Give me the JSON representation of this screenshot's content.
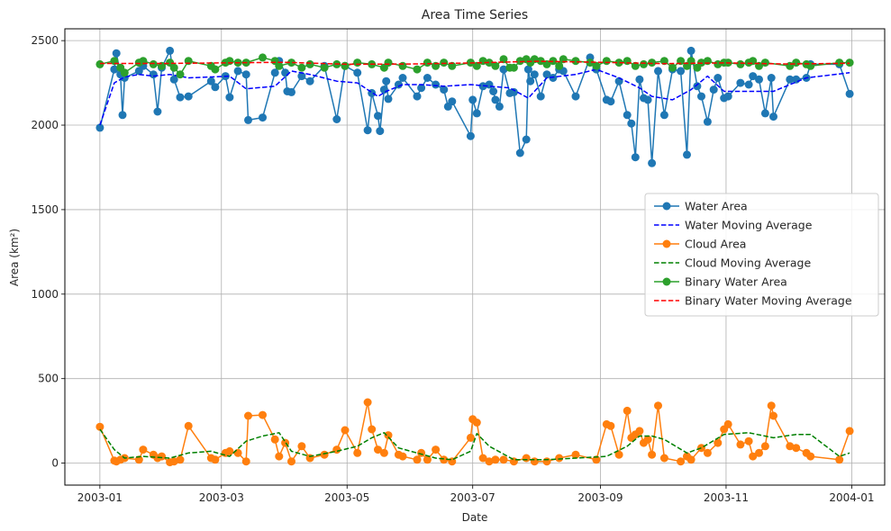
{
  "chart_data": {
    "type": "line",
    "title": "Area Time Series",
    "xlabel": "Date",
    "ylabel": "Area (km²)",
    "xlim": [
      "2002-12-15",
      "2004-01-17"
    ],
    "ylim": [
      -130,
      2570
    ],
    "grid": true,
    "legend_position": "center-right",
    "xticks": [
      {
        "date": "2003-01-01",
        "label": "2003-01"
      },
      {
        "date": "2003-03-01",
        "label": "2003-03"
      },
      {
        "date": "2003-05-01",
        "label": "2003-05"
      },
      {
        "date": "2003-07-01",
        "label": "2003-07"
      },
      {
        "date": "2003-09-01",
        "label": "2003-09"
      },
      {
        "date": "2003-11-01",
        "label": "2003-11"
      },
      {
        "date": "2004-01-01",
        "label": "2004-01"
      }
    ],
    "yticks": [
      0,
      500,
      1000,
      1500,
      2000,
      2500
    ],
    "series": [
      {
        "name": "Water Area",
        "style": "line-marker",
        "color": "#1f77b4",
        "x": [
          "2003-01-01",
          "2003-01-08",
          "2003-01-09",
          "2003-01-11",
          "2003-01-12",
          "2003-01-13",
          "2003-01-20",
          "2003-01-22",
          "2003-01-27",
          "2003-01-29",
          "2003-01-31",
          "2003-02-04",
          "2003-02-06",
          "2003-02-09",
          "2003-02-13",
          "2003-02-24",
          "2003-02-26",
          "2003-03-03",
          "2003-03-05",
          "2003-03-09",
          "2003-03-13",
          "2003-03-14",
          "2003-03-21",
          "2003-03-27",
          "2003-03-29",
          "2003-04-01",
          "2003-04-02",
          "2003-04-04",
          "2003-04-09",
          "2003-04-13",
          "2003-04-20",
          "2003-04-26",
          "2003-04-30",
          "2003-05-06",
          "2003-05-11",
          "2003-05-13",
          "2003-05-16",
          "2003-05-17",
          "2003-05-19",
          "2003-05-20",
          "2003-05-21",
          "2003-05-26",
          "2003-05-28",
          "2003-06-04",
          "2003-06-06",
          "2003-06-09",
          "2003-06-13",
          "2003-06-17",
          "2003-06-19",
          "2003-06-21",
          "2003-06-30",
          "2003-07-01",
          "2003-07-03",
          "2003-07-06",
          "2003-07-09",
          "2003-07-11",
          "2003-07-12",
          "2003-07-14",
          "2003-07-16",
          "2003-07-19",
          "2003-07-21",
          "2003-07-24",
          "2003-07-27",
          "2003-07-28",
          "2003-07-29",
          "2003-07-31",
          "2003-08-03",
          "2003-08-06",
          "2003-08-09",
          "2003-08-12",
          "2003-08-14",
          "2003-08-20",
          "2003-08-27",
          "2003-08-30",
          "2003-09-04",
          "2003-09-06",
          "2003-09-10",
          "2003-09-14",
          "2003-09-16",
          "2003-09-18",
          "2003-09-20",
          "2003-09-22",
          "2003-09-24",
          "2003-09-26",
          "2003-09-29",
          "2003-10-02",
          "2003-10-06",
          "2003-10-10",
          "2003-10-13",
          "2003-10-15",
          "2003-10-18",
          "2003-10-20",
          "2003-10-23",
          "2003-10-26",
          "2003-10-28",
          "2003-10-31",
          "2003-11-02",
          "2003-11-08",
          "2003-11-12",
          "2003-11-14",
          "2003-11-17",
          "2003-11-20",
          "2003-11-23",
          "2003-11-24",
          "2003-12-02",
          "2003-12-05",
          "2003-12-10",
          "2003-12-12",
          "2003-12-26",
          "2003-12-31"
        ],
        "y": [
          1985,
          2330,
          2425,
          2300,
          2060,
          2280,
          2320,
          2350,
          2300,
          2080,
          2340,
          2440,
          2270,
          2165,
          2170,
          2260,
          2225,
          2290,
          2165,
          2320,
          2300,
          2030,
          2045,
          2310,
          2380,
          2310,
          2200,
          2195,
          2290,
          2260,
          2350,
          2035,
          2350,
          2310,
          1970,
          2190,
          2055,
          1965,
          2210,
          2260,
          2155,
          2240,
          2280,
          2170,
          2220,
          2280,
          2240,
          2210,
          2110,
          2140,
          1935,
          2150,
          2070,
          2230,
          2240,
          2200,
          2150,
          2110,
          2330,
          2190,
          2195,
          1835,
          1915,
          2330,
          2260,
          2300,
          2170,
          2300,
          2280,
          2330,
          2320,
          2170,
          2400,
          2330,
          2150,
          2140,
          2260,
          2060,
          2010,
          1810,
          2270,
          2160,
          2150,
          1775,
          2320,
          2060,
          2330,
          2320,
          1825,
          2440,
          2230,
          2170,
          2020,
          2210,
          2280,
          2160,
          2170,
          2250,
          2240,
          2290,
          2270,
          2070,
          2280,
          2050,
          2270,
          2270,
          2280,
          2360,
          2360,
          2185
        ]
      },
      {
        "name": "Water Moving Average",
        "style": "dashed",
        "color": "#0000ff",
        "x": [
          "2003-01-01",
          "2003-01-08",
          "2003-01-13",
          "2003-01-20",
          "2003-01-27",
          "2003-02-04",
          "2003-02-13",
          "2003-02-24",
          "2003-03-05",
          "2003-03-13",
          "2003-03-27",
          "2003-04-04",
          "2003-04-13",
          "2003-04-26",
          "2003-05-06",
          "2003-05-16",
          "2003-05-20",
          "2003-05-28",
          "2003-06-06",
          "2003-06-17",
          "2003-06-30",
          "2003-07-09",
          "2003-07-19",
          "2003-07-28",
          "2003-08-06",
          "2003-08-20",
          "2003-08-30",
          "2003-09-10",
          "2003-09-20",
          "2003-09-26",
          "2003-10-06",
          "2003-10-15",
          "2003-10-23",
          "2003-10-31",
          "2003-11-12",
          "2003-11-24",
          "2003-12-10",
          "2003-12-31"
        ],
        "y": [
          2000,
          2250,
          2285,
          2300,
          2290,
          2300,
          2280,
          2285,
          2290,
          2215,
          2230,
          2320,
          2300,
          2260,
          2250,
          2170,
          2200,
          2240,
          2240,
          2230,
          2240,
          2230,
          2220,
          2160,
          2280,
          2300,
          2330,
          2280,
          2220,
          2170,
          2150,
          2210,
          2290,
          2200,
          2200,
          2200,
          2280,
          2310
        ]
      },
      {
        "name": "Cloud Area",
        "style": "line-marker",
        "color": "#ff7f0e",
        "x": [
          "2003-01-01",
          "2003-01-08",
          "2003-01-09",
          "2003-01-11",
          "2003-01-13",
          "2003-01-20",
          "2003-01-22",
          "2003-01-27",
          "2003-01-29",
          "2003-01-31",
          "2003-02-04",
          "2003-02-06",
          "2003-02-09",
          "2003-02-13",
          "2003-02-24",
          "2003-02-26",
          "2003-03-03",
          "2003-03-05",
          "2003-03-09",
          "2003-03-13",
          "2003-03-14",
          "2003-03-21",
          "2003-03-27",
          "2003-03-29",
          "2003-04-01",
          "2003-04-04",
          "2003-04-09",
          "2003-04-13",
          "2003-04-20",
          "2003-04-26",
          "2003-04-30",
          "2003-05-06",
          "2003-05-11",
          "2003-05-13",
          "2003-05-16",
          "2003-05-19",
          "2003-05-21",
          "2003-05-26",
          "2003-05-28",
          "2003-06-04",
          "2003-06-06",
          "2003-06-09",
          "2003-06-13",
          "2003-06-17",
          "2003-06-21",
          "2003-06-30",
          "2003-07-01",
          "2003-07-03",
          "2003-07-06",
          "2003-07-09",
          "2003-07-12",
          "2003-07-16",
          "2003-07-21",
          "2003-07-27",
          "2003-07-31",
          "2003-08-06",
          "2003-08-12",
          "2003-08-20",
          "2003-08-30",
          "2003-09-04",
          "2003-09-06",
          "2003-09-10",
          "2003-09-14",
          "2003-09-16",
          "2003-09-18",
          "2003-09-20",
          "2003-09-22",
          "2003-09-24",
          "2003-09-26",
          "2003-09-29",
          "2003-10-02",
          "2003-10-10",
          "2003-10-13",
          "2003-10-15",
          "2003-10-20",
          "2003-10-23",
          "2003-10-28",
          "2003-10-31",
          "2003-11-02",
          "2003-11-08",
          "2003-11-12",
          "2003-11-14",
          "2003-11-17",
          "2003-11-20",
          "2003-11-23",
          "2003-11-24",
          "2003-12-02",
          "2003-12-05",
          "2003-12-10",
          "2003-12-12",
          "2003-12-26",
          "2003-12-31"
        ],
        "y": [
          215,
          15,
          10,
          20,
          30,
          20,
          80,
          50,
          30,
          40,
          5,
          10,
          20,
          220,
          30,
          20,
          60,
          70,
          60,
          10,
          280,
          285,
          140,
          40,
          120,
          10,
          100,
          30,
          50,
          80,
          195,
          60,
          360,
          200,
          80,
          60,
          165,
          50,
          40,
          20,
          60,
          20,
          80,
          20,
          10,
          150,
          260,
          240,
          30,
          10,
          20,
          20,
          10,
          30,
          10,
          10,
          30,
          50,
          20,
          230,
          220,
          50,
          310,
          150,
          170,
          190,
          120,
          140,
          50,
          340,
          30,
          10,
          40,
          20,
          90,
          60,
          120,
          200,
          230,
          110,
          130,
          40,
          60,
          100,
          340,
          280,
          100,
          90,
          60,
          40,
          20,
          190
        ]
      },
      {
        "name": "Cloud Moving Average",
        "style": "dashed",
        "color": "#008000",
        "x": [
          "2003-01-01",
          "2003-01-08",
          "2003-01-13",
          "2003-01-22",
          "2003-02-04",
          "2003-02-13",
          "2003-02-24",
          "2003-03-05",
          "2003-03-13",
          "2003-03-21",
          "2003-03-29",
          "2003-04-04",
          "2003-04-13",
          "2003-04-26",
          "2003-05-06",
          "2003-05-13",
          "2003-05-19",
          "2003-05-26",
          "2003-06-04",
          "2003-06-13",
          "2003-06-21",
          "2003-06-30",
          "2003-07-03",
          "2003-07-09",
          "2003-07-21",
          "2003-08-06",
          "2003-08-20",
          "2003-09-04",
          "2003-09-14",
          "2003-09-20",
          "2003-09-26",
          "2003-10-02",
          "2003-10-13",
          "2003-10-20",
          "2003-10-31",
          "2003-11-12",
          "2003-11-24",
          "2003-12-05",
          "2003-12-12",
          "2003-12-26",
          "2003-12-31"
        ],
        "y": [
          200,
          80,
          30,
          40,
          30,
          60,
          70,
          40,
          130,
          160,
          180,
          70,
          40,
          70,
          100,
          150,
          180,
          90,
          60,
          30,
          20,
          70,
          175,
          100,
          20,
          20,
          30,
          40,
          100,
          160,
          160,
          140,
          60,
          90,
          170,
          180,
          150,
          170,
          170,
          40,
          60
        ]
      },
      {
        "name": "Binary Water Area",
        "style": "line-marker",
        "color": "#2ca02c",
        "x": [
          "2003-01-01",
          "2003-01-08",
          "2003-01-11",
          "2003-01-13",
          "2003-01-20",
          "2003-01-22",
          "2003-01-27",
          "2003-01-31",
          "2003-02-04",
          "2003-02-06",
          "2003-02-09",
          "2003-02-13",
          "2003-02-24",
          "2003-02-26",
          "2003-03-03",
          "2003-03-05",
          "2003-03-09",
          "2003-03-13",
          "2003-03-21",
          "2003-03-27",
          "2003-03-29",
          "2003-04-04",
          "2003-04-09",
          "2003-04-13",
          "2003-04-20",
          "2003-04-26",
          "2003-04-30",
          "2003-05-06",
          "2003-05-13",
          "2003-05-19",
          "2003-05-21",
          "2003-05-28",
          "2003-06-04",
          "2003-06-09",
          "2003-06-13",
          "2003-06-17",
          "2003-06-21",
          "2003-06-30",
          "2003-07-03",
          "2003-07-06",
          "2003-07-09",
          "2003-07-12",
          "2003-07-16",
          "2003-07-19",
          "2003-07-21",
          "2003-07-24",
          "2003-07-27",
          "2003-07-29",
          "2003-07-31",
          "2003-08-03",
          "2003-08-06",
          "2003-08-09",
          "2003-08-12",
          "2003-08-14",
          "2003-08-20",
          "2003-08-27",
          "2003-08-30",
          "2003-09-04",
          "2003-09-10",
          "2003-09-14",
          "2003-09-18",
          "2003-09-22",
          "2003-09-26",
          "2003-10-02",
          "2003-10-06",
          "2003-10-10",
          "2003-10-13",
          "2003-10-15",
          "2003-10-18",
          "2003-10-20",
          "2003-10-23",
          "2003-10-28",
          "2003-10-31",
          "2003-11-02",
          "2003-11-08",
          "2003-11-12",
          "2003-11-14",
          "2003-11-17",
          "2003-11-20",
          "2003-12-02",
          "2003-12-05",
          "2003-12-10",
          "2003-12-12",
          "2003-12-26",
          "2003-12-31"
        ],
        "y": [
          2360,
          2380,
          2340,
          2310,
          2370,
          2380,
          2360,
          2350,
          2370,
          2340,
          2300,
          2380,
          2350,
          2330,
          2370,
          2380,
          2370,
          2370,
          2400,
          2380,
          2350,
          2370,
          2340,
          2360,
          2340,
          2360,
          2350,
          2370,
          2360,
          2340,
          2370,
          2350,
          2330,
          2370,
          2350,
          2370,
          2350,
          2370,
          2350,
          2380,
          2370,
          2350,
          2390,
          2340,
          2340,
          2380,
          2390,
          2370,
          2390,
          2380,
          2360,
          2380,
          2350,
          2390,
          2380,
          2370,
          2350,
          2380,
          2370,
          2380,
          2350,
          2360,
          2370,
          2380,
          2340,
          2380,
          2350,
          2380,
          2340,
          2370,
          2380,
          2360,
          2370,
          2370,
          2360,
          2370,
          2380,
          2350,
          2370,
          2350,
          2370,
          2360,
          2350,
          2370,
          2370
        ]
      },
      {
        "name": "Binary Water Moving Average",
        "style": "dashed",
        "color": "#ff0000",
        "x": [
          "2003-01-01",
          "2003-02-01",
          "2003-03-01",
          "2003-04-01",
          "2003-05-01",
          "2003-06-01",
          "2003-07-01",
          "2003-08-01",
          "2003-09-01",
          "2003-10-01",
          "2003-11-01",
          "2003-12-01",
          "2003-12-31"
        ],
        "y": [
          2365,
          2365,
          2368,
          2372,
          2360,
          2362,
          2368,
          2378,
          2372,
          2364,
          2368,
          2362,
          2366
        ]
      }
    ]
  }
}
